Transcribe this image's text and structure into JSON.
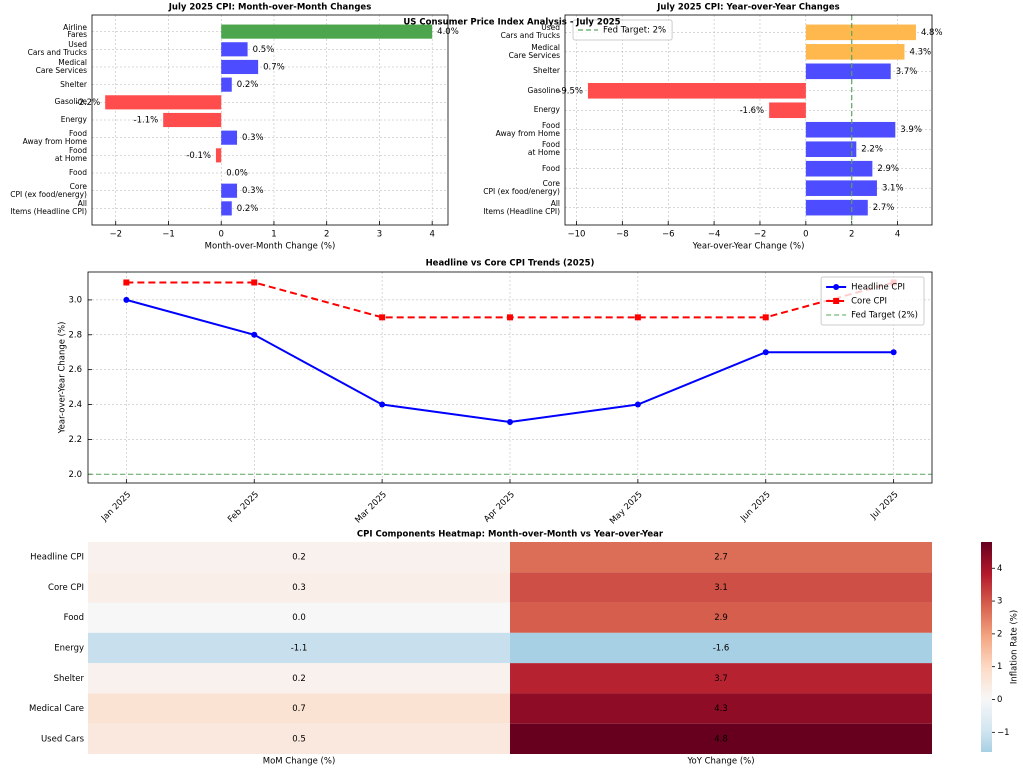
{
  "title": "US Consumer Price Index Analysis - July 2025",
  "chart_data": [
    {
      "type": "barh",
      "title": "July 2025 CPI: Month-over-Month Changes",
      "xlabel": "Month-over-Month Change (%)",
      "categories": [
        "All\nItems (Headline CPI)",
        "Core\nCPI (ex food/energy)",
        "Food",
        "Food\nat Home",
        "Food\nAway from Home",
        "Energy",
        "Gasoline",
        "Shelter",
        "Medical\nCare Services",
        "Used\nCars and Trucks",
        "Airline\nFares"
      ],
      "values": [
        0.2,
        0.3,
        0.0,
        -0.1,
        0.3,
        -1.1,
        -2.2,
        0.2,
        0.7,
        0.5,
        4.0
      ],
      "value_labels": [
        "0.2%",
        "0.3%",
        "0.0%",
        "-0.1%",
        "0.3%",
        "-1.1%",
        "-2.2%",
        "0.2%",
        "0.7%",
        "0.5%",
        "4.0%"
      ],
      "colors": [
        "#4d4dff",
        "#4d4dff",
        "#4d4dff",
        "#ff4d4d",
        "#4d4dff",
        "#ff4d4d",
        "#ff4d4d",
        "#4d4dff",
        "#4d4dff",
        "#4d4dff",
        "#4da64d"
      ],
      "xlim": [
        -2.45,
        4.3
      ],
      "xticks": [
        {
          "value": -2,
          "label": "−2"
        },
        {
          "value": -1,
          "label": "−1"
        },
        0,
        1,
        2,
        3,
        4
      ],
      "grid": true
    },
    {
      "type": "barh",
      "title": "July 2025 CPI: Year-over-Year Changes",
      "xlabel": "Year-over-Year Change (%)",
      "categories": [
        "All\nItems (Headline CPI)",
        "Core\nCPI (ex food/energy)",
        "Food",
        "Food\nat Home",
        "Food\nAway from Home",
        "Energy",
        "Gasoline",
        "Shelter",
        "Medical\nCare Services",
        "Used\nCars and Trucks"
      ],
      "values": [
        2.7,
        3.1,
        2.9,
        2.2,
        3.9,
        -1.6,
        -9.5,
        3.7,
        4.3,
        4.8
      ],
      "value_labels": [
        "2.7%",
        "3.1%",
        "2.9%",
        "2.2%",
        "3.9%",
        "-1.6%",
        "-9.5%",
        "3.7%",
        "4.3%",
        "4.8%"
      ],
      "colors": [
        "#4d4dff",
        "#4d4dff",
        "#4d4dff",
        "#4d4dff",
        "#4d4dff",
        "#ff4d4d",
        "#ff4d4d",
        "#4d4dff",
        "#ffb84d",
        "#ffb84d"
      ],
      "target": 2,
      "target_label": "Fed Target: 2%",
      "target_color": "#5aa55a",
      "legend": "upper left",
      "xlim": [
        -10.5,
        5.5
      ],
      "xticks": [
        {
          "value": -10,
          "label": "−10"
        },
        {
          "value": -8,
          "label": "−8"
        },
        {
          "value": -6,
          "label": "−6"
        },
        {
          "value": -4,
          "label": "−4"
        },
        {
          "value": -2,
          "label": "−2"
        },
        0,
        2,
        4
      ],
      "grid": true
    },
    {
      "type": "line",
      "title": "Headline vs Core CPI Trends (2025)",
      "ylabel": "Year-over-Year Change (%)",
      "categories": [
        "Jan 2025",
        "Feb 2025",
        "Mar 2025",
        "Apr 2025",
        "May 2025",
        "Jun 2025",
        "Jul 2025"
      ],
      "series": [
        {
          "name": "Headline CPI",
          "color": "#0000ff",
          "marker": "circle",
          "linestyle": "solid",
          "values": [
            3.0,
            2.8,
            2.4,
            2.3,
            2.4,
            2.7,
            2.7
          ]
        },
        {
          "name": "Core CPI",
          "color": "#ff0000",
          "marker": "square",
          "linestyle": "dashed",
          "values": [
            3.1,
            3.1,
            2.9,
            2.9,
            2.9,
            2.9,
            3.1
          ]
        }
      ],
      "target": 2.0,
      "target_label": "Fed Target (2%)",
      "target_color": "#5aa55a",
      "legend": "upper right",
      "ylim": [
        1.95,
        3.16
      ],
      "yticks": [
        {
          "value": 2,
          "label": "2.0"
        },
        2.2,
        2.4,
        2.6,
        2.8,
        {
          "value": 3,
          "label": "3.0"
        }
      ],
      "grid": true
    },
    {
      "type": "heatmap",
      "title": "CPI Components Heatmap: Month-over-Month vs Year-over-Year",
      "rows": [
        "Headline CPI",
        "Core CPI",
        "Food",
        "Energy",
        "Shelter",
        "Medical Care",
        "Used Cars"
      ],
      "columns": [
        "MoM Change (%)",
        "YoY Change (%)"
      ],
      "values": [
        [
          0.2,
          2.7
        ],
        [
          0.3,
          3.1
        ],
        [
          0.0,
          2.9
        ],
        [
          -1.1,
          -1.6
        ],
        [
          0.2,
          3.7
        ],
        [
          0.7,
          4.3
        ],
        [
          0.5,
          4.8
        ]
      ],
      "value_labels": [
        [
          "0.2",
          "2.7"
        ],
        [
          "0.3",
          "3.1"
        ],
        [
          "0.0",
          "2.9"
        ],
        [
          "-1.1",
          "-1.6"
        ],
        [
          "0.2",
          "3.7"
        ],
        [
          "0.7",
          "4.3"
        ],
        [
          "0.5",
          "4.8"
        ]
      ],
      "colormap": "RdBu_r",
      "center": 0,
      "clim": [
        -1.6,
        4.8
      ],
      "cticks": [
        {
          "value": -1,
          "label": "−1"
        },
        0,
        1,
        2,
        3,
        4
      ],
      "colorbar_label": "Inflation Rate (%)"
    }
  ]
}
